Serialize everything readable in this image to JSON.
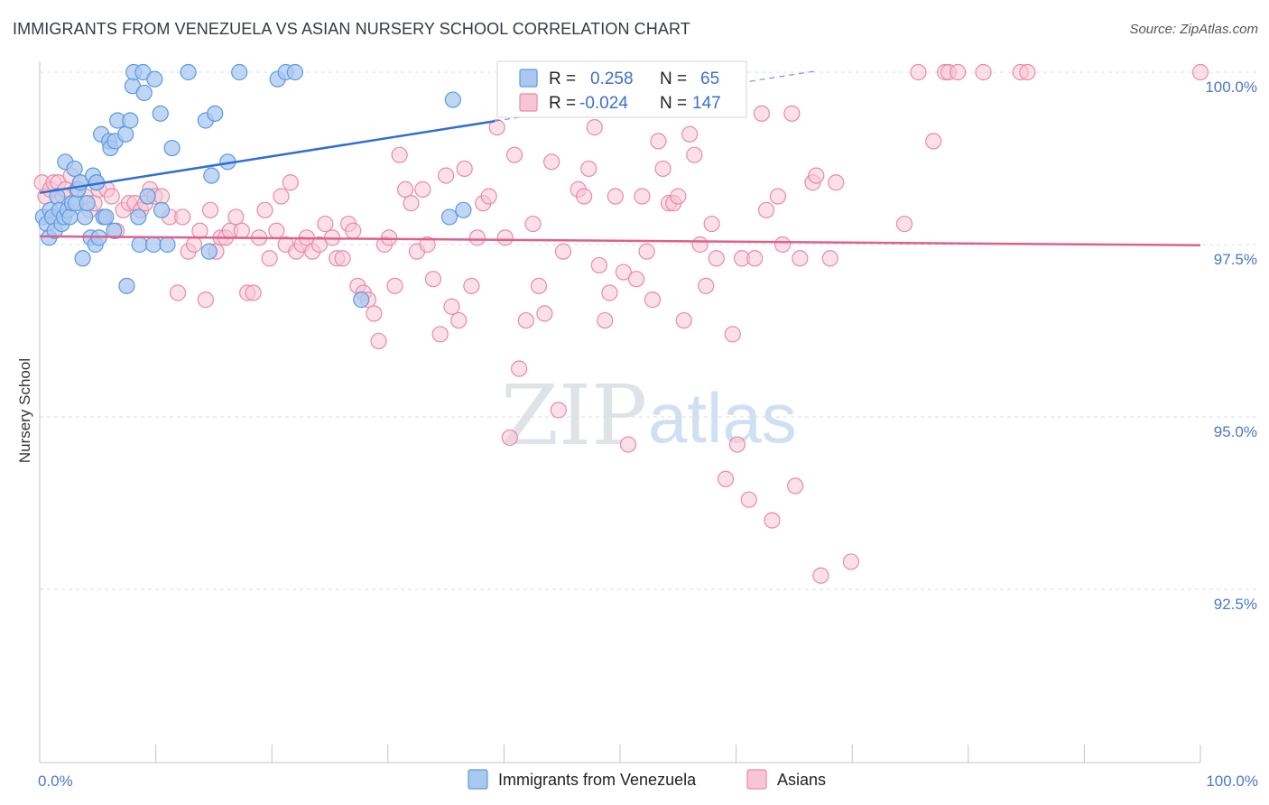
{
  "title": "IMMIGRANTS FROM VENEZUELA VS ASIAN NURSERY SCHOOL CORRELATION CHART",
  "source": "Source: ZipAtlas.com",
  "watermark": {
    "zip": "ZIP",
    "atlas": "atlas"
  },
  "colors": {
    "blue": "#5b9ae0",
    "blue_fill": "#a9c8f0",
    "blue_line": "#2f6fd0",
    "pink": "#e88aa8",
    "pink_fill": "#f7c6d4",
    "pink_line": "#e0608a",
    "tick_text": "#4a78c8"
  },
  "legend_box": {
    "rows": [
      {
        "r_label": "R =",
        "r_value": "0.258",
        "n_label": "N =",
        "n_value": "65"
      },
      {
        "r_label": "R =",
        "r_value": "-0.024",
        "n_label": "N =",
        "n_value": "147"
      }
    ]
  },
  "chart_data": {
    "type": "scatter",
    "title": "IMMIGRANTS FROM VENEZUELA VS ASIAN NURSERY SCHOOL CORRELATION CHART",
    "xlabel": "",
    "ylabel": "Nursery School",
    "xlim": [
      0,
      100
    ],
    "ylim": [
      90.0,
      100.4
    ],
    "x_tick_labels": [
      "0.0%",
      "100.0%"
    ],
    "y_ticks": [
      92.5,
      95.0,
      97.5,
      100.0
    ],
    "y_tick_labels": [
      "92.5%",
      "95.0%",
      "97.5%",
      "100.0%"
    ],
    "grid": "horizontal dashed",
    "legend_position": "bottom",
    "series": [
      {
        "name": "Immigrants from Venezuela",
        "color": "#5b9ae0",
        "trend": {
          "x": [
            0,
            39.2
          ],
          "y": [
            98.25,
            99.29
          ],
          "dashed_extension": {
            "x": [
              39.2,
              67
            ],
            "y": [
              99.29,
              100.02
            ]
          }
        },
        "points": [
          [
            0.3,
            97.9
          ],
          [
            0.6,
            97.8
          ],
          [
            0.8,
            97.6
          ],
          [
            0.9,
            98.0
          ],
          [
            1.1,
            97.9
          ],
          [
            1.3,
            97.7
          ],
          [
            1.5,
            98.2
          ],
          [
            1.7,
            98.0
          ],
          [
            1.9,
            97.8
          ],
          [
            2.1,
            97.9
          ],
          [
            2.2,
            98.7
          ],
          [
            2.4,
            98.0
          ],
          [
            2.6,
            97.9
          ],
          [
            2.8,
            98.1
          ],
          [
            3.0,
            98.6
          ],
          [
            3.1,
            98.1
          ],
          [
            3.3,
            98.3
          ],
          [
            3.5,
            98.4
          ],
          [
            3.7,
            97.3
          ],
          [
            3.9,
            97.9
          ],
          [
            4.1,
            98.1
          ],
          [
            4.4,
            97.6
          ],
          [
            4.6,
            98.5
          ],
          [
            4.8,
            97.5
          ],
          [
            4.9,
            98.4
          ],
          [
            5.1,
            97.6
          ],
          [
            5.3,
            99.1
          ],
          [
            5.5,
            97.9
          ],
          [
            5.7,
            97.9
          ],
          [
            6.0,
            99.0
          ],
          [
            6.1,
            98.9
          ],
          [
            6.4,
            97.7
          ],
          [
            6.5,
            99.0
          ],
          [
            6.7,
            99.3
          ],
          [
            7.4,
            99.1
          ],
          [
            7.5,
            96.9
          ],
          [
            7.8,
            99.3
          ],
          [
            8.0,
            99.8
          ],
          [
            8.1,
            100.0
          ],
          [
            8.5,
            97.9
          ],
          [
            8.6,
            97.5
          ],
          [
            8.9,
            100.0
          ],
          [
            9.0,
            99.7
          ],
          [
            9.3,
            98.2
          ],
          [
            9.8,
            97.5
          ],
          [
            9.9,
            99.9
          ],
          [
            10.4,
            99.4
          ],
          [
            10.5,
            98.0
          ],
          [
            11.0,
            97.5
          ],
          [
            11.4,
            98.9
          ],
          [
            12.8,
            100.0
          ],
          [
            14.3,
            99.3
          ],
          [
            14.6,
            97.4
          ],
          [
            14.8,
            98.5
          ],
          [
            15.1,
            99.4
          ],
          [
            16.2,
            98.7
          ],
          [
            17.2,
            100.0
          ],
          [
            20.5,
            99.9
          ],
          [
            21.2,
            100.0
          ],
          [
            22.0,
            100.0
          ],
          [
            27.7,
            96.7
          ],
          [
            35.3,
            97.9
          ],
          [
            35.6,
            99.6
          ],
          [
            36.5,
            98.0
          ],
          [
            4.9,
            98.4
          ]
        ]
      },
      {
        "name": "Asians",
        "color": "#e88aa8",
        "trend": {
          "x": [
            0,
            100
          ],
          "y": [
            97.62,
            97.49
          ]
        },
        "points": [
          [
            0.2,
            98.4
          ],
          [
            0.5,
            98.2
          ],
          [
            0.9,
            98.3
          ],
          [
            1.2,
            98.4
          ],
          [
            1.6,
            98.4
          ],
          [
            2.0,
            98.2
          ],
          [
            2.2,
            98.3
          ],
          [
            2.7,
            98.5
          ],
          [
            3.2,
            98.3
          ],
          [
            3.5,
            98.4
          ],
          [
            3.9,
            98.2
          ],
          [
            4.3,
            98.0
          ],
          [
            4.7,
            98.1
          ],
          [
            5.1,
            98.3
          ],
          [
            5.5,
            97.9
          ],
          [
            5.8,
            98.3
          ],
          [
            6.2,
            98.2
          ],
          [
            6.6,
            97.7
          ],
          [
            7.2,
            98.0
          ],
          [
            7.7,
            98.1
          ],
          [
            8.2,
            98.1
          ],
          [
            8.7,
            98.0
          ],
          [
            9.1,
            98.1
          ],
          [
            9.5,
            98.3
          ],
          [
            9.9,
            98.2
          ],
          [
            10.5,
            98.2
          ],
          [
            11.2,
            97.9
          ],
          [
            11.9,
            96.8
          ],
          [
            12.3,
            97.9
          ],
          [
            12.8,
            97.4
          ],
          [
            13.3,
            97.5
          ],
          [
            13.8,
            97.7
          ],
          [
            14.3,
            96.7
          ],
          [
            14.7,
            98.0
          ],
          [
            15.2,
            97.4
          ],
          [
            15.6,
            97.6
          ],
          [
            16.0,
            97.6
          ],
          [
            16.4,
            97.7
          ],
          [
            16.9,
            97.9
          ],
          [
            17.4,
            97.7
          ],
          [
            17.9,
            96.8
          ],
          [
            18.4,
            96.8
          ],
          [
            18.9,
            97.6
          ],
          [
            19.4,
            98.0
          ],
          [
            19.8,
            97.3
          ],
          [
            20.4,
            97.7
          ],
          [
            20.8,
            98.2
          ],
          [
            21.2,
            97.5
          ],
          [
            21.6,
            98.4
          ],
          [
            22.1,
            97.4
          ],
          [
            22.6,
            97.5
          ],
          [
            23.0,
            97.6
          ],
          [
            23.5,
            97.4
          ],
          [
            24.1,
            97.5
          ],
          [
            24.6,
            97.8
          ],
          [
            25.2,
            97.6
          ],
          [
            25.6,
            97.3
          ],
          [
            26.1,
            97.3
          ],
          [
            26.6,
            97.8
          ],
          [
            27.0,
            97.7
          ],
          [
            27.4,
            96.9
          ],
          [
            27.9,
            96.8
          ],
          [
            28.3,
            96.7
          ],
          [
            28.8,
            96.5
          ],
          [
            29.2,
            96.1
          ],
          [
            29.7,
            97.5
          ],
          [
            30.1,
            97.6
          ],
          [
            30.6,
            96.9
          ],
          [
            31.0,
            98.8
          ],
          [
            31.5,
            98.3
          ],
          [
            32.0,
            98.1
          ],
          [
            32.5,
            97.4
          ],
          [
            33.0,
            98.3
          ],
          [
            33.4,
            97.5
          ],
          [
            33.9,
            97.0
          ],
          [
            34.5,
            96.2
          ],
          [
            35.0,
            98.5
          ],
          [
            35.5,
            96.6
          ],
          [
            36.1,
            96.4
          ],
          [
            36.6,
            98.6
          ],
          [
            37.2,
            96.9
          ],
          [
            37.7,
            97.6
          ],
          [
            38.2,
            98.1
          ],
          [
            38.7,
            98.2
          ],
          [
            39.4,
            99.2
          ],
          [
            40.1,
            97.6
          ],
          [
            40.5,
            94.7
          ],
          [
            40.9,
            98.8
          ],
          [
            41.3,
            95.7
          ],
          [
            41.9,
            96.4
          ],
          [
            42.5,
            97.8
          ],
          [
            43.0,
            96.9
          ],
          [
            43.5,
            96.5
          ],
          [
            44.1,
            98.7
          ],
          [
            44.7,
            95.1
          ],
          [
            45.1,
            97.4
          ],
          [
            45.9,
            99.6
          ],
          [
            46.4,
            98.3
          ],
          [
            46.9,
            98.2
          ],
          [
            47.3,
            98.6
          ],
          [
            47.8,
            99.2
          ],
          [
            48.2,
            97.2
          ],
          [
            48.7,
            96.4
          ],
          [
            49.1,
            96.8
          ],
          [
            49.6,
            98.2
          ],
          [
            50.3,
            97.1
          ],
          [
            50.7,
            94.6
          ],
          [
            51.4,
            97.0
          ],
          [
            51.9,
            98.2
          ],
          [
            52.3,
            97.4
          ],
          [
            52.8,
            96.7
          ],
          [
            53.3,
            99.0
          ],
          [
            53.7,
            98.6
          ],
          [
            54.2,
            98.1
          ],
          [
            54.6,
            98.1
          ],
          [
            55.0,
            98.2
          ],
          [
            55.5,
            96.4
          ],
          [
            56.0,
            99.1
          ],
          [
            56.4,
            98.8
          ],
          [
            56.9,
            97.5
          ],
          [
            57.4,
            96.9
          ],
          [
            57.9,
            97.8
          ],
          [
            58.3,
            97.3
          ],
          [
            59.1,
            94.1
          ],
          [
            59.7,
            96.2
          ],
          [
            60.1,
            94.6
          ],
          [
            60.5,
            97.3
          ],
          [
            61.1,
            93.8
          ],
          [
            61.6,
            97.3
          ],
          [
            62.2,
            99.4
          ],
          [
            62.6,
            98.0
          ],
          [
            63.1,
            93.5
          ],
          [
            63.6,
            98.2
          ],
          [
            64.0,
            97.5
          ],
          [
            64.8,
            99.4
          ],
          [
            65.1,
            94.0
          ],
          [
            65.5,
            97.3
          ],
          [
            66.6,
            98.4
          ],
          [
            66.9,
            98.5
          ],
          [
            67.3,
            92.7
          ],
          [
            68.1,
            97.3
          ],
          [
            68.6,
            98.4
          ],
          [
            69.9,
            92.9
          ],
          [
            74.5,
            97.8
          ],
          [
            75.7,
            100.0
          ],
          [
            77.0,
            99.0
          ],
          [
            78.0,
            100.0
          ],
          [
            78.3,
            100.0
          ],
          [
            79.1,
            100.0
          ],
          [
            81.3,
            100.0
          ],
          [
            84.5,
            100.0
          ],
          [
            85.1,
            100.0
          ],
          [
            100.0,
            100.0
          ]
        ]
      }
    ]
  },
  "bottom_legend": [
    {
      "label": "Immigrants from Venezuela"
    },
    {
      "label": "Asians"
    }
  ]
}
